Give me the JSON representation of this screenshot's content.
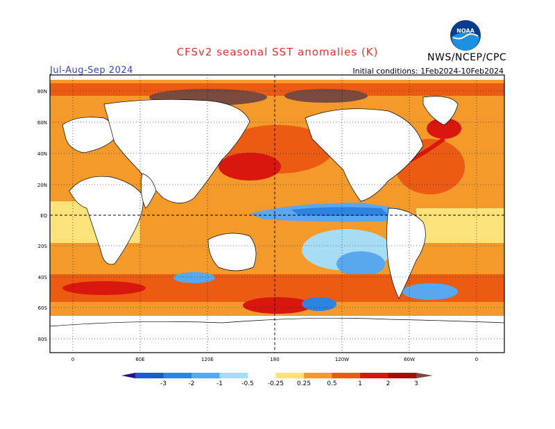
{
  "header": {
    "title": "CFSv2 seasonal SST anomalies (K)",
    "season": "Jul-Aug-Sep 2024",
    "initial_conditions": "Initial conditions: 1Feb2024-10Feb2024",
    "agency": "NWS/NCEP/CPC",
    "logo_text": "NOAA"
  },
  "map": {
    "lat_labels": [
      "80N",
      "60N",
      "40N",
      "20N",
      "EQ",
      "20S",
      "40S",
      "60S",
      "80S"
    ],
    "lon_labels": [
      "0",
      "60E",
      "120E",
      "180",
      "120W",
      "60W",
      "0"
    ]
  },
  "colorbar": {
    "levels": [
      "-3",
      "-2",
      "-1",
      "-0.5",
      "-0.25",
      "0.25",
      "0.5",
      "1",
      "2",
      "3"
    ],
    "colors": [
      "#2a0d8a",
      "#1e5ac8",
      "#2f83e0",
      "#59a8ee",
      "#a6dcf4",
      "#ffffff",
      "#fbe27a",
      "#f39a2a",
      "#ec5b12",
      "#d8170f",
      "#a80c0c",
      "#7a4a3e"
    ]
  },
  "colors": {
    "title": "#e8322c",
    "season": "#3344cc"
  }
}
